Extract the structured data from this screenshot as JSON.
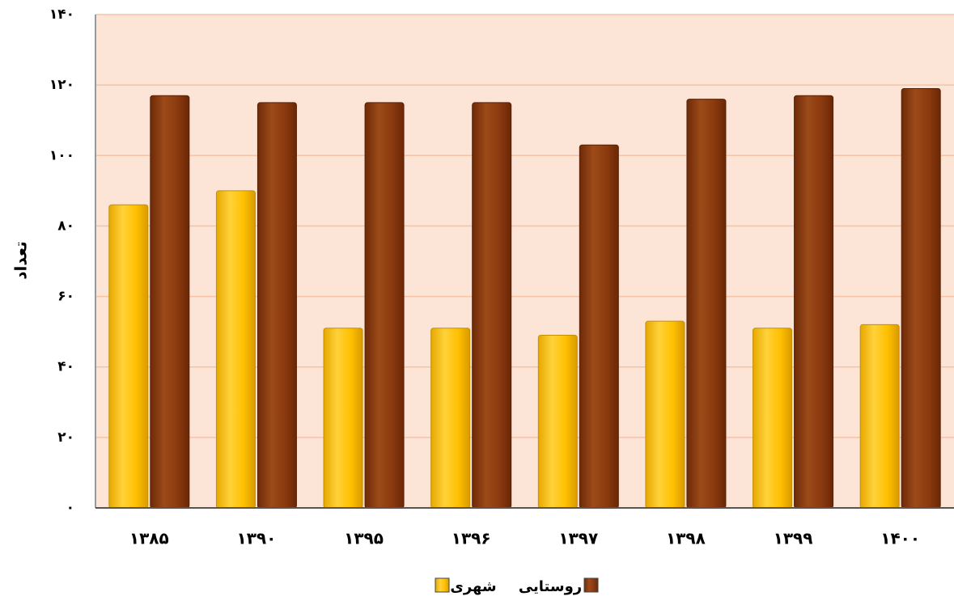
{
  "chart_data": {
    "type": "bar",
    "title": "",
    "xlabel": "",
    "ylabel": "تعداد",
    "categories": [
      "۱۳۸۵",
      "۱۳۹۰",
      "۱۳۹۵",
      "۱۳۹۶",
      "۱۳۹۷",
      "۱۳۹۸",
      "۱۳۹۹",
      "۱۴۰۰"
    ],
    "series": [
      {
        "name": "شهری",
        "color": "#FFC000",
        "values": [
          86,
          90,
          51,
          51,
          49,
          53,
          51,
          52
        ]
      },
      {
        "name": "روستایی",
        "color": "#8B3A0F",
        "values": [
          117,
          115,
          115,
          115,
          103,
          116,
          117,
          119
        ]
      }
    ],
    "ylim": [
      0,
      140
    ],
    "yticks": [
      0,
      20,
      40,
      60,
      80,
      100,
      120,
      140
    ],
    "ytick_labels": [
      "۰",
      "۲۰",
      "۴۰",
      "۶۰",
      "۸۰",
      "۱۰۰",
      "۱۲۰",
      "۱۴۰"
    ],
    "grid": true,
    "legend_position": "bottom-center",
    "plot_background": "#FCE4D6"
  }
}
